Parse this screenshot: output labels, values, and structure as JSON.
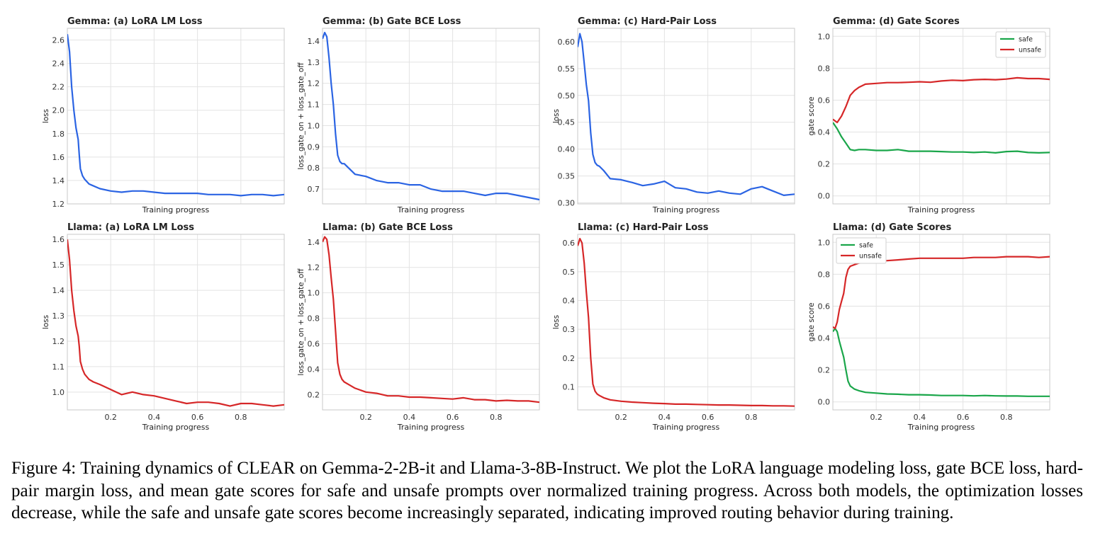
{
  "caption": "Figure 4: Training dynamics of CLEAR on Gemma-2-2B-it and Llama-3-8B-Instruct. We plot the LoRA language modeling loss, gate BCE loss, hard-pair margin loss, and mean gate scores for safe and unsafe prompts over normalized training progress. Across both models, the optimization losses decrease, while the safe and unsafe gate scores become increasingly separated, indicating improved routing behavior during training.",
  "colors": {
    "blue": "#2b64e3",
    "red": "#d62728",
    "green": "#1aa64a",
    "grid": "#e3e3e3",
    "frame": "#c8c8c8"
  },
  "chart_data": [
    {
      "type": "line",
      "title": "Gemma: (a) LoRA LM Loss",
      "xlabel": "Training progress",
      "ylabel": "loss",
      "xlim": [
        0,
        1
      ],
      "ylim": [
        1.2,
        2.7
      ],
      "yticks": [
        1.2,
        1.4,
        1.6,
        1.8,
        2.0,
        2.2,
        2.4,
        2.6
      ],
      "xticks_labeled": false,
      "legend": "none",
      "series": [
        {
          "color": "blue",
          "x": [
            0,
            0.01,
            0.02,
            0.03,
            0.04,
            0.05,
            0.055,
            0.06,
            0.07,
            0.08,
            0.1,
            0.15,
            0.2,
            0.25,
            0.3,
            0.35,
            0.4,
            0.45,
            0.5,
            0.55,
            0.6,
            0.65,
            0.7,
            0.75,
            0.8,
            0.85,
            0.9,
            0.95,
            1.0
          ],
          "y": [
            2.65,
            2.5,
            2.2,
            2.0,
            1.85,
            1.75,
            1.62,
            1.5,
            1.44,
            1.41,
            1.37,
            1.33,
            1.31,
            1.3,
            1.31,
            1.31,
            1.3,
            1.29,
            1.29,
            1.29,
            1.29,
            1.28,
            1.28,
            1.28,
            1.27,
            1.28,
            1.28,
            1.27,
            1.28
          ]
        }
      ]
    },
    {
      "type": "line",
      "title": "Gemma: (b) Gate BCE Loss",
      "xlabel": "Training progress",
      "ylabel": "loss_gate_on + loss_gate_off",
      "xlim": [
        0,
        1
      ],
      "ylim": [
        0.63,
        1.46
      ],
      "yticks": [
        0.7,
        0.8,
        0.9,
        1.0,
        1.1,
        1.2,
        1.3,
        1.4
      ],
      "xticks_labeled": false,
      "legend": "none",
      "series": [
        {
          "color": "blue",
          "x": [
            0,
            0.01,
            0.02,
            0.03,
            0.04,
            0.05,
            0.06,
            0.07,
            0.08,
            0.09,
            0.1,
            0.12,
            0.15,
            0.2,
            0.25,
            0.3,
            0.35,
            0.4,
            0.45,
            0.5,
            0.55,
            0.6,
            0.65,
            0.7,
            0.75,
            0.8,
            0.85,
            0.9,
            0.95,
            1.0
          ],
          "y": [
            1.41,
            1.44,
            1.42,
            1.32,
            1.2,
            1.1,
            0.96,
            0.86,
            0.83,
            0.82,
            0.82,
            0.8,
            0.77,
            0.76,
            0.74,
            0.73,
            0.73,
            0.72,
            0.72,
            0.7,
            0.69,
            0.69,
            0.69,
            0.68,
            0.67,
            0.68,
            0.68,
            0.67,
            0.66,
            0.65
          ]
        }
      ]
    },
    {
      "type": "line",
      "title": "Gemma: (c) Hard-Pair Loss",
      "xlabel": "Training progress",
      "ylabel": "loss",
      "xlim": [
        0,
        1
      ],
      "ylim": [
        0.298,
        0.625
      ],
      "yticks": [
        0.3,
        0.35,
        0.4,
        0.45,
        0.5,
        0.55,
        0.6
      ],
      "xticks_labeled": false,
      "legend": "none",
      "series": [
        {
          "color": "blue",
          "x": [
            0,
            0.01,
            0.02,
            0.03,
            0.04,
            0.05,
            0.06,
            0.07,
            0.08,
            0.09,
            0.1,
            0.12,
            0.15,
            0.2,
            0.25,
            0.3,
            0.35,
            0.4,
            0.45,
            0.5,
            0.55,
            0.6,
            0.65,
            0.7,
            0.75,
            0.8,
            0.85,
            0.9,
            0.95,
            1.0
          ],
          "y": [
            0.59,
            0.615,
            0.6,
            0.56,
            0.52,
            0.49,
            0.43,
            0.39,
            0.375,
            0.37,
            0.368,
            0.36,
            0.345,
            0.343,
            0.338,
            0.332,
            0.335,
            0.34,
            0.328,
            0.326,
            0.32,
            0.318,
            0.322,
            0.318,
            0.316,
            0.326,
            0.33,
            0.322,
            0.314,
            0.316
          ]
        }
      ]
    },
    {
      "type": "line",
      "title": "Gemma: (d) Gate Scores",
      "xlabel": "Training progress",
      "ylabel": "gate score",
      "xlim": [
        0,
        1
      ],
      "ylim": [
        -0.05,
        1.05
      ],
      "yticks": [
        0.0,
        0.2,
        0.4,
        0.6,
        0.8,
        1.0
      ],
      "xticks_labeled": false,
      "legend": "top-right",
      "series": [
        {
          "name": "safe",
          "color": "green",
          "x": [
            0,
            0.02,
            0.04,
            0.06,
            0.08,
            0.1,
            0.12,
            0.15,
            0.2,
            0.25,
            0.3,
            0.35,
            0.4,
            0.45,
            0.5,
            0.55,
            0.6,
            0.65,
            0.7,
            0.75,
            0.8,
            0.85,
            0.9,
            0.95,
            1.0
          ],
          "y": [
            0.46,
            0.42,
            0.37,
            0.33,
            0.29,
            0.285,
            0.29,
            0.29,
            0.285,
            0.285,
            0.29,
            0.28,
            0.28,
            0.28,
            0.278,
            0.275,
            0.275,
            0.272,
            0.275,
            0.27,
            0.278,
            0.28,
            0.272,
            0.27,
            0.272
          ]
        },
        {
          "name": "unsafe",
          "color": "red",
          "x": [
            0,
            0.02,
            0.04,
            0.06,
            0.08,
            0.1,
            0.12,
            0.15,
            0.2,
            0.25,
            0.3,
            0.35,
            0.4,
            0.45,
            0.5,
            0.55,
            0.6,
            0.65,
            0.7,
            0.75,
            0.8,
            0.85,
            0.9,
            0.95,
            1.0
          ],
          "y": [
            0.48,
            0.46,
            0.5,
            0.56,
            0.63,
            0.66,
            0.68,
            0.7,
            0.705,
            0.71,
            0.71,
            0.712,
            0.715,
            0.712,
            0.72,
            0.725,
            0.722,
            0.728,
            0.73,
            0.728,
            0.732,
            0.74,
            0.735,
            0.735,
            0.73
          ]
        }
      ]
    },
    {
      "type": "line",
      "title": "Llama: (a) LoRA LM Loss",
      "xlabel": "Training progress",
      "ylabel": "loss",
      "xlim": [
        0,
        1
      ],
      "ylim": [
        0.93,
        1.62
      ],
      "yticks": [
        1.0,
        1.1,
        1.2,
        1.3,
        1.4,
        1.5,
        1.6
      ],
      "xticks": [
        0.2,
        0.4,
        0.6,
        0.8
      ],
      "xticks_labeled": true,
      "legend": "none",
      "series": [
        {
          "color": "red",
          "x": [
            0,
            0.01,
            0.02,
            0.03,
            0.04,
            0.05,
            0.055,
            0.06,
            0.07,
            0.08,
            0.1,
            0.12,
            0.15,
            0.2,
            0.25,
            0.3,
            0.35,
            0.4,
            0.45,
            0.5,
            0.55,
            0.6,
            0.65,
            0.7,
            0.75,
            0.8,
            0.85,
            0.9,
            0.95,
            1.0
          ],
          "y": [
            1.6,
            1.52,
            1.4,
            1.32,
            1.26,
            1.22,
            1.18,
            1.12,
            1.09,
            1.07,
            1.05,
            1.04,
            1.03,
            1.01,
            0.99,
            1.0,
            0.99,
            0.985,
            0.975,
            0.965,
            0.955,
            0.96,
            0.96,
            0.955,
            0.945,
            0.955,
            0.955,
            0.95,
            0.945,
            0.95
          ]
        }
      ]
    },
    {
      "type": "line",
      "title": "Llama: (b) Gate BCE Loss",
      "xlabel": "Training progress",
      "ylabel": "loss_gate_on + loss_gate_off",
      "xlim": [
        0,
        1
      ],
      "ylim": [
        0.08,
        1.46
      ],
      "yticks": [
        0.2,
        0.4,
        0.6,
        0.8,
        1.0,
        1.2,
        1.4
      ],
      "xticks": [
        0.2,
        0.4,
        0.6,
        0.8
      ],
      "xticks_labeled": true,
      "legend": "none",
      "series": [
        {
          "color": "red",
          "x": [
            0,
            0.01,
            0.02,
            0.03,
            0.04,
            0.05,
            0.06,
            0.07,
            0.08,
            0.09,
            0.1,
            0.12,
            0.15,
            0.2,
            0.25,
            0.3,
            0.35,
            0.4,
            0.45,
            0.5,
            0.55,
            0.6,
            0.65,
            0.7,
            0.75,
            0.8,
            0.85,
            0.9,
            0.95,
            1.0
          ],
          "y": [
            1.4,
            1.44,
            1.42,
            1.3,
            1.12,
            0.95,
            0.7,
            0.45,
            0.36,
            0.32,
            0.3,
            0.28,
            0.25,
            0.22,
            0.21,
            0.19,
            0.19,
            0.18,
            0.18,
            0.175,
            0.17,
            0.165,
            0.175,
            0.16,
            0.16,
            0.15,
            0.155,
            0.15,
            0.15,
            0.14
          ]
        }
      ]
    },
    {
      "type": "line",
      "title": "Llama: (c) Hard-Pair Loss",
      "xlabel": "Training progress",
      "ylabel": "loss",
      "xlim": [
        0,
        1
      ],
      "ylim": [
        0.02,
        0.63
      ],
      "yticks": [
        0.1,
        0.2,
        0.3,
        0.4,
        0.5,
        0.6
      ],
      "xticks": [
        0.2,
        0.4,
        0.6,
        0.8
      ],
      "xticks_labeled": true,
      "legend": "none",
      "series": [
        {
          "color": "red",
          "x": [
            0,
            0.01,
            0.02,
            0.03,
            0.04,
            0.05,
            0.06,
            0.07,
            0.08,
            0.09,
            0.1,
            0.12,
            0.15,
            0.2,
            0.25,
            0.3,
            0.35,
            0.4,
            0.45,
            0.5,
            0.55,
            0.6,
            0.65,
            0.7,
            0.75,
            0.8,
            0.85,
            0.9,
            0.95,
            1.0
          ],
          "y": [
            0.59,
            0.615,
            0.6,
            0.53,
            0.43,
            0.34,
            0.2,
            0.11,
            0.085,
            0.075,
            0.07,
            0.062,
            0.055,
            0.05,
            0.047,
            0.045,
            0.043,
            0.042,
            0.04,
            0.04,
            0.039,
            0.038,
            0.037,
            0.037,
            0.036,
            0.035,
            0.035,
            0.034,
            0.034,
            0.033
          ]
        }
      ]
    },
    {
      "type": "line",
      "title": "Llama: (d) Gate Scores",
      "xlabel": "Training progress",
      "ylabel": "gate score",
      "xlim": [
        0,
        1
      ],
      "ylim": [
        -0.05,
        1.05
      ],
      "yticks": [
        0.0,
        0.2,
        0.4,
        0.6,
        0.8,
        1.0
      ],
      "xticks": [
        0.2,
        0.4,
        0.6,
        0.8
      ],
      "xticks_labeled": true,
      "legend": "top-left",
      "series": [
        {
          "name": "safe",
          "color": "green",
          "x": [
            0,
            0.01,
            0.02,
            0.03,
            0.04,
            0.05,
            0.06,
            0.07,
            0.08,
            0.1,
            0.12,
            0.15,
            0.2,
            0.25,
            0.3,
            0.35,
            0.4,
            0.45,
            0.5,
            0.55,
            0.6,
            0.65,
            0.7,
            0.75,
            0.8,
            0.85,
            0.9,
            0.95,
            1.0
          ],
          "y": [
            0.44,
            0.46,
            0.44,
            0.38,
            0.33,
            0.28,
            0.2,
            0.13,
            0.1,
            0.08,
            0.07,
            0.06,
            0.055,
            0.05,
            0.048,
            0.045,
            0.045,
            0.043,
            0.04,
            0.04,
            0.04,
            0.038,
            0.04,
            0.038,
            0.037,
            0.037,
            0.035,
            0.035,
            0.035
          ]
        },
        {
          "name": "unsafe",
          "color": "red",
          "x": [
            0,
            0.01,
            0.02,
            0.03,
            0.04,
            0.05,
            0.06,
            0.07,
            0.08,
            0.1,
            0.12,
            0.15,
            0.2,
            0.25,
            0.3,
            0.35,
            0.4,
            0.45,
            0.5,
            0.55,
            0.6,
            0.65,
            0.7,
            0.75,
            0.8,
            0.85,
            0.9,
            0.95,
            1.0
          ],
          "y": [
            0.47,
            0.46,
            0.5,
            0.58,
            0.63,
            0.68,
            0.78,
            0.83,
            0.85,
            0.86,
            0.87,
            0.875,
            0.88,
            0.885,
            0.89,
            0.895,
            0.9,
            0.9,
            0.9,
            0.9,
            0.9,
            0.905,
            0.905,
            0.905,
            0.91,
            0.91,
            0.91,
            0.905,
            0.91
          ]
        }
      ]
    }
  ]
}
